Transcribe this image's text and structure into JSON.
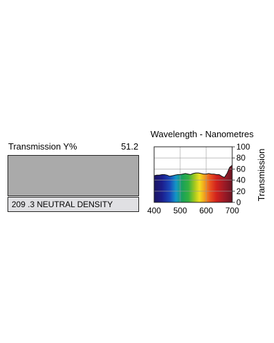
{
  "filter": {
    "transmission_label": "Transmission Y%",
    "transmission_value": "51.2",
    "name": "209 .3 NEUTRAL DENSITY",
    "swatch_color": "#aaaaaa",
    "name_box_color": "#e0e0e3"
  },
  "chart_data": {
    "type": "area",
    "title": "Wavelength - Nanometres",
    "xlabel": "",
    "ylabel": "Transmission",
    "xlim": [
      400,
      700
    ],
    "ylim": [
      0,
      100
    ],
    "x_ticks": [
      400,
      500,
      600,
      700
    ],
    "y_ticks": [
      0,
      20,
      40,
      60,
      80,
      100
    ],
    "grid": true,
    "x": [
      400,
      410,
      420,
      430,
      440,
      450,
      460,
      470,
      480,
      490,
      500,
      510,
      520,
      530,
      540,
      550,
      560,
      570,
      580,
      590,
      600,
      610,
      620,
      630,
      640,
      650,
      660,
      670,
      680,
      690,
      700
    ],
    "series": [
      {
        "values": [
          48,
          49,
          49,
          50,
          50,
          49,
          47,
          48,
          49,
          50,
          50,
          51,
          52,
          51,
          50,
          52,
          53,
          53,
          52,
          51,
          51,
          52,
          51,
          51,
          50,
          50,
          47,
          45,
          52,
          63,
          67
        ]
      }
    ]
  }
}
